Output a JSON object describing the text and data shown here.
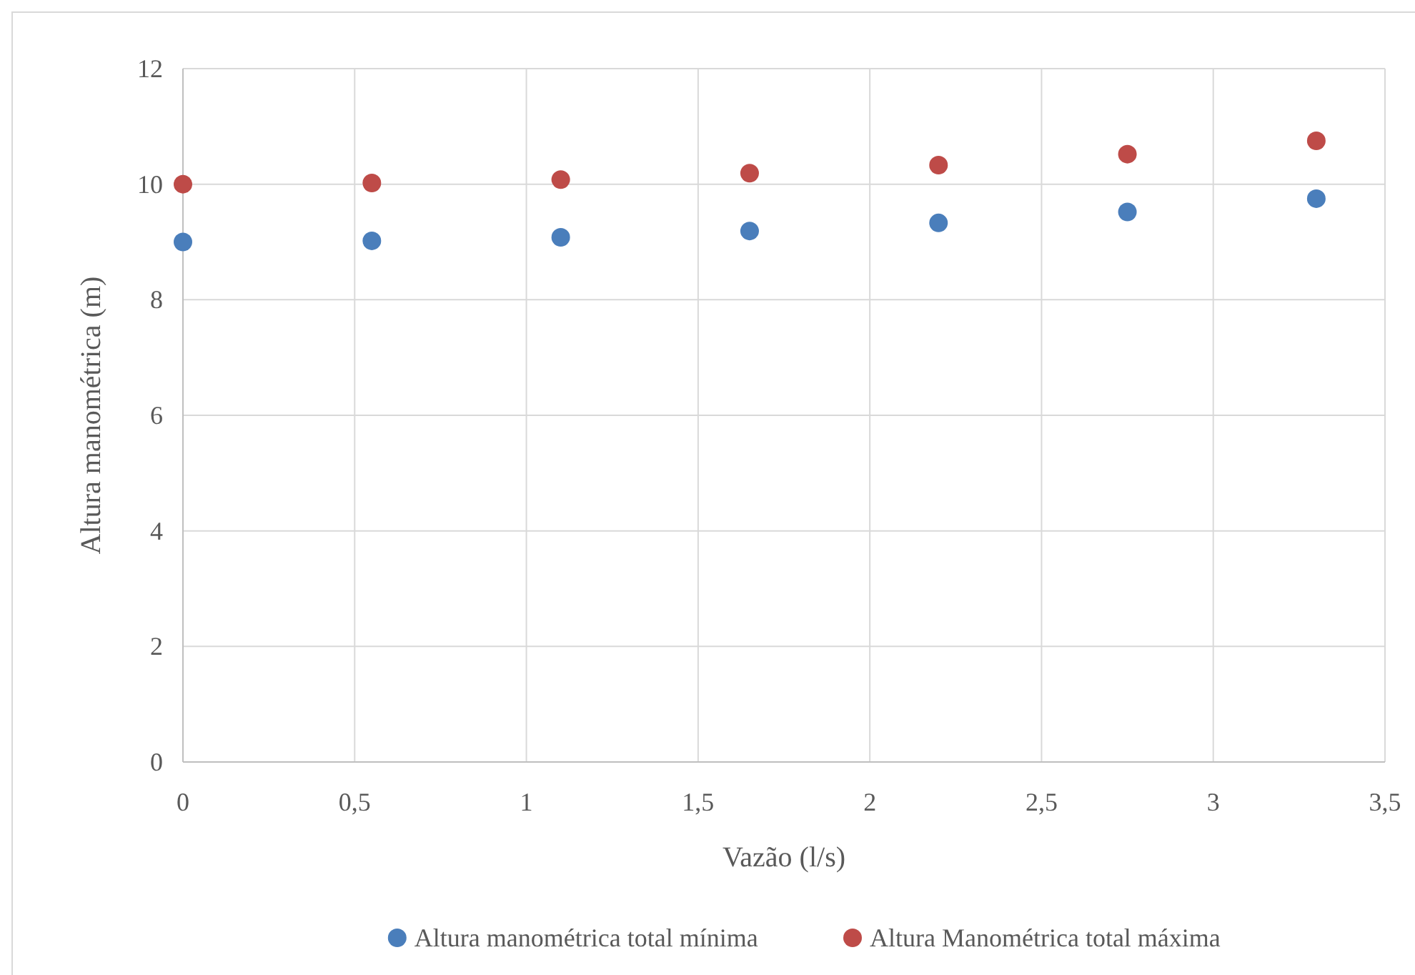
{
  "chart_data": {
    "type": "scatter",
    "xlabel": "Vazão (l/s)",
    "ylabel": "Altura manométrica (m)",
    "x": [
      0,
      0.55,
      1.1,
      1.65,
      2.2,
      2.75,
      3.3
    ],
    "series": [
      {
        "name": "Altura manométrica total mínima",
        "color": "#4a7ebb",
        "values": [
          9.0,
          9.02,
          9.08,
          9.19,
          9.33,
          9.52,
          9.75
        ]
      },
      {
        "name": "Altura Manométrica total máxima",
        "color": "#be4b48",
        "values": [
          10.0,
          10.02,
          10.08,
          10.19,
          10.33,
          10.52,
          10.75
        ]
      }
    ],
    "xlim": [
      0,
      3.5
    ],
    "xticks": [
      0,
      {
        "value": 0.5,
        "label": "0,5"
      },
      1,
      {
        "value": 1.5,
        "label": "1,5"
      },
      2,
      {
        "value": 2.5,
        "label": "2,5"
      },
      3,
      {
        "value": 3.5,
        "label": "3,5"
      }
    ],
    "ylim": [
      0,
      12
    ],
    "yticks": [
      0,
      2,
      4,
      6,
      8,
      10,
      12
    ],
    "grid": true,
    "legend": "bottom",
    "marker": "circle"
  }
}
